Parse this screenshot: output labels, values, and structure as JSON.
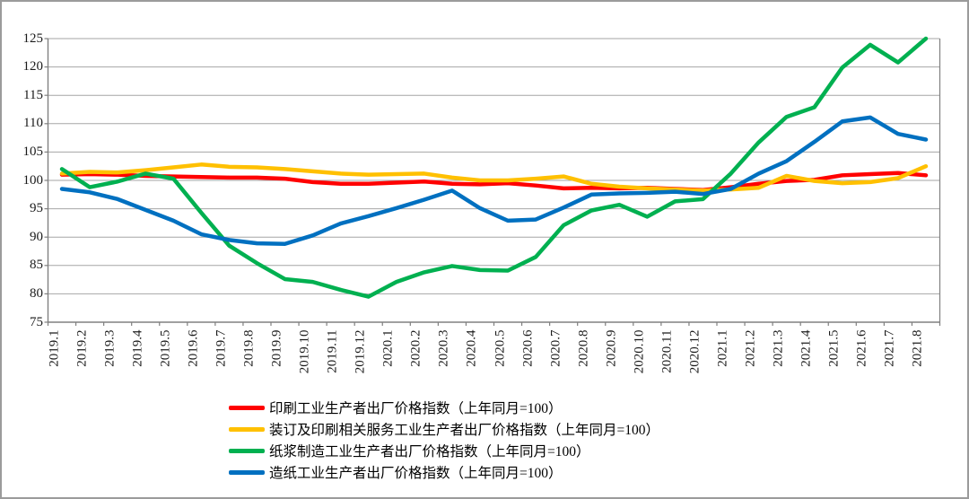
{
  "chart_data": {
    "type": "line",
    "title": "",
    "xlabel": "",
    "ylabel": "",
    "ylim": [
      75,
      125
    ],
    "yticks": [
      125,
      120,
      115,
      110,
      105,
      100,
      95,
      90,
      85,
      80,
      75
    ],
    "grid": true,
    "legend_position": "bottom-left",
    "categories": [
      "2019.1",
      "2019.2",
      "2019.3",
      "2019.4",
      "2019.5",
      "2019.6",
      "2019.7",
      "2019.8",
      "2019.9",
      "2019.10",
      "2019.11",
      "2019.12",
      "2020.1",
      "2020.2",
      "2020.3",
      "2020.4",
      "2020.5",
      "2020.6",
      "2020.7",
      "2020.8",
      "2020.9",
      "2020.10",
      "2020.11",
      "2020.12",
      "2021.1",
      "2021.2",
      "2021.3",
      "2021.4",
      "2021.5",
      "2021.6",
      "2021.7",
      "2021.8"
    ],
    "series": [
      {
        "name": "印刷工业生产者出厂价格指数（上年同月=100）",
        "color": "#FF0000",
        "values": [
          101.0,
          101.1,
          101.0,
          100.8,
          100.7,
          100.6,
          100.5,
          100.5,
          100.3,
          99.7,
          99.4,
          99.4,
          99.6,
          99.8,
          99.4,
          99.3,
          99.5,
          99.1,
          98.6,
          98.7,
          98.6,
          98.7,
          98.5,
          98.3,
          98.8,
          99.4,
          99.9,
          100.1,
          100.9,
          101.1,
          101.3,
          100.9
        ]
      },
      {
        "name": "装订及印刷相关服务工业生产者出厂价格指数（上年同月=100）",
        "color": "#FFC000",
        "values": [
          101.2,
          101.5,
          101.4,
          101.8,
          102.3,
          102.8,
          102.4,
          102.3,
          102.0,
          101.6,
          101.2,
          101.0,
          101.1,
          101.2,
          100.5,
          100.0,
          100.0,
          100.3,
          100.7,
          99.4,
          98.9,
          98.6,
          98.4,
          98.2,
          98.4,
          98.7,
          100.8,
          99.9,
          99.5,
          99.7,
          100.4,
          102.5
        ]
      },
      {
        "name": "纸浆制造工业生产者出厂价格指数（上年同月=100）",
        "color": "#00B050",
        "values": [
          102.0,
          98.8,
          99.8,
          101.2,
          100.3,
          94.3,
          88.5,
          85.4,
          82.6,
          82.1,
          80.7,
          79.5,
          82.1,
          83.8,
          84.9,
          84.2,
          84.1,
          86.5,
          92.1,
          94.7,
          95.7,
          93.6,
          96.3,
          96.7,
          101.2,
          106.7,
          111.2,
          112.9,
          119.9,
          123.9,
          120.8,
          125.0
        ]
      },
      {
        "name": "造纸工业生产者出厂价格指数（上年同月=100）",
        "color": "#0070C0",
        "values": [
          98.5,
          97.9,
          96.7,
          94.8,
          92.9,
          90.5,
          89.5,
          88.9,
          88.8,
          90.3,
          92.4,
          93.7,
          95.1,
          96.6,
          98.2,
          95.1,
          92.9,
          93.1,
          95.2,
          97.5,
          97.7,
          97.8,
          98.0,
          97.6,
          98.5,
          101.2,
          103.4,
          106.8,
          110.4,
          111.1,
          108.2,
          107.2
        ]
      }
    ],
    "style": {
      "grid_color": "#A6A6A6",
      "axis_color": "#808080",
      "label_color": "#1a1a1a",
      "background": "#ffffff"
    }
  }
}
